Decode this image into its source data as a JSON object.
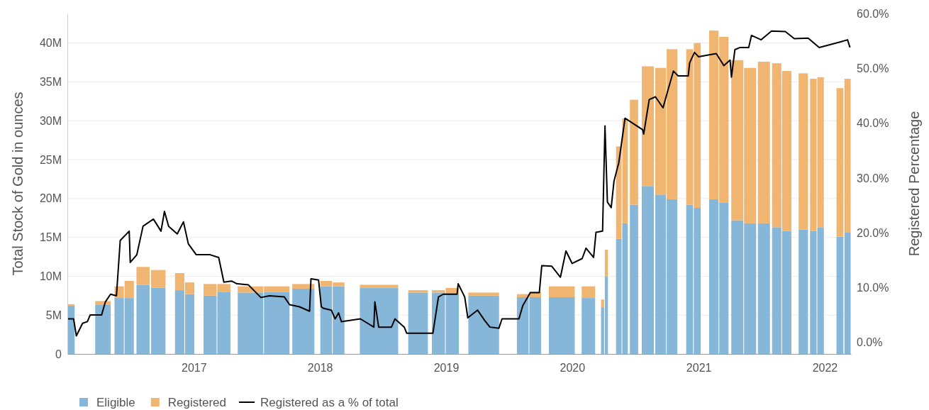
{
  "chart_data": {
    "type": "bar",
    "stacked": true,
    "xlabel": null,
    "ylabel": "Total Stock of Gold in ounces",
    "y2label": "Registered Percentage",
    "xlim": [
      "2016-01-01",
      "2022-03-18"
    ],
    "xticks": [
      {
        "value": "2017-01-01",
        "label": "2017"
      },
      {
        "value": "2018-01-01",
        "label": "2018"
      },
      {
        "value": "2019-01-01",
        "label": "2019"
      },
      {
        "value": "2020-01-01",
        "label": "2020"
      },
      {
        "value": "2021-01-01",
        "label": "2021"
      },
      {
        "value": "2022-01-01",
        "label": "2022"
      }
    ],
    "ylim": [
      0,
      43.8
    ],
    "yticks": [
      0,
      {
        "value": 5,
        "label": "5M"
      },
      {
        "value": 10,
        "label": "10M"
      },
      {
        "value": 15,
        "label": "15M"
      },
      {
        "value": 20,
        "label": "20M"
      },
      {
        "value": 25,
        "label": "25M"
      },
      {
        "value": 30,
        "label": "30M"
      },
      {
        "value": 35,
        "label": "35M"
      },
      {
        "value": 40,
        "label": "40M"
      }
    ],
    "y2lim": [
      -2.1,
      60
    ],
    "y2ticks": [
      {
        "value": 0,
        "label": "0.0%"
      },
      {
        "value": 10,
        "label": "10.0%"
      },
      {
        "value": 20,
        "label": "20.0%"
      },
      {
        "value": 30,
        "label": "30.0%"
      },
      {
        "value": 40,
        "label": "40.0%"
      },
      {
        "value": 50,
        "label": "50.0%"
      },
      {
        "value": 60,
        "label": "60.0%"
      }
    ],
    "grid": "y",
    "legend": "bottom left",
    "x": [
      "2016-01-12",
      "2016-04-13",
      "2016-05-30",
      "2016-06-28",
      "2016-08-07",
      "2016-09-20",
      "2016-11-21",
      "2016-12-20",
      "2017-02-17",
      "2017-03-29",
      "2017-06-14",
      "2017-08-29",
      "2017-11-14",
      "2018-01-19",
      "2018-02-24",
      "2018-06-21",
      "2018-10-12",
      "2018-12-10",
      "2019-01-19",
      "2019-04-20",
      "2019-08-11",
      "2019-09-16",
      "2019-12-02",
      "2020-02-17",
      "2020-03-29",
      "2020-04-09",
      "2020-05-15",
      "2020-06-02",
      "2020-06-28",
      "2020-08-07",
      "2020-09-13",
      "2020-10-16",
      "2020-12-06",
      "2020-12-28",
      "2021-02-14",
      "2021-03-15",
      "2021-04-23",
      "2021-05-30",
      "2021-07-09",
      "2021-08-15",
      "2021-09-13",
      "2021-10-31",
      "2021-11-29",
      "2021-12-20",
      "2022-02-14",
      "2022-03-08"
    ],
    "series": [
      {
        "name": "Eligible",
        "color": "#86b6d8",
        "values": [
          6.2,
          6.3,
          7.2,
          7.2,
          8.9,
          8.5,
          8.2,
          7.7,
          7.5,
          8.0,
          7.9,
          8.0,
          8.4,
          8.7,
          8.7,
          8.5,
          7.9,
          7.9,
          7.7,
          7.5,
          7.3,
          7.3,
          7.3,
          7.2,
          6.0,
          10.0,
          14.8,
          16.8,
          19.2,
          21.6,
          20.5,
          19.9,
          19.2,
          18.8,
          19.9,
          19.5,
          17.2,
          16.8,
          16.8,
          16.3,
          15.8,
          16.0,
          15.8,
          16.3,
          15.1,
          15.6
        ]
      },
      {
        "name": "Registered",
        "color": "#f1b572",
        "values": [
          0.2,
          0.5,
          1.5,
          2.2,
          2.3,
          2.3,
          2.2,
          1.5,
          1.5,
          1.0,
          0.8,
          0.7,
          0.6,
          0.7,
          0.5,
          0.4,
          0.3,
          0.3,
          0.8,
          0.4,
          0.4,
          0.7,
          1.4,
          1.5,
          1.0,
          3.4,
          11.9,
          13.5,
          13.5,
          15.4,
          16.3,
          19.3,
          20.0,
          21.2,
          21.7,
          21.3,
          20.6,
          20.0,
          20.8,
          21.1,
          20.6,
          20.1,
          19.6,
          19.3,
          19.1,
          19.8
        ]
      },
      {
        "name": "Registered as a % of total",
        "type": "line",
        "axis": "y2",
        "color": "#000000",
        "x": [
          "2016-01-01",
          "2016-01-19",
          "2016-01-27",
          "2016-02-14",
          "2016-02-28",
          "2016-03-07",
          "2016-04-09",
          "2016-04-20",
          "2016-05-05",
          "2016-05-22",
          "2016-06-02",
          "2016-06-28",
          "2016-07-01",
          "2016-07-20",
          "2016-08-07",
          "2016-09-06",
          "2016-09-28",
          "2016-10-08",
          "2016-10-20",
          "2016-11-14",
          "2016-12-02",
          "2016-12-16",
          "2017-01-08",
          "2017-02-17",
          "2017-03-14",
          "2017-03-29",
          "2017-04-20",
          "2017-05-06",
          "2017-06-08",
          "2017-07-14",
          "2017-08-08",
          "2017-09-20",
          "2017-10-05",
          "2017-11-03",
          "2017-12-02",
          "2017-12-06",
          "2017-12-28",
          "2018-01-05",
          "2018-01-12",
          "2018-02-03",
          "2018-02-14",
          "2018-02-24",
          "2018-03-04",
          "2018-04-28",
          "2018-06-06",
          "2018-06-09",
          "2018-06-20",
          "2018-07-27",
          "2018-08-06",
          "2018-09-02",
          "2018-09-09",
          "2018-11-24",
          "2018-12-10",
          "2018-12-24",
          "2019-02-02",
          "2019-02-05",
          "2019-02-24",
          "2019-03-05",
          "2019-04-02",
          "2019-04-23",
          "2019-05-08",
          "2019-06-03",
          "2019-06-12",
          "2019-07-31",
          "2019-08-11",
          "2019-09-02",
          "2019-09-28",
          "2019-10-05",
          "2019-11-03",
          "2019-11-28",
          "2019-12-14",
          "2020-01-01",
          "2020-01-30",
          "2020-02-10",
          "2020-03-03",
          "2020-03-10",
          "2020-03-29",
          "2020-04-05",
          "2020-04-12",
          "2020-04-23",
          "2020-05-01",
          "2020-05-15",
          "2020-06-02",
          "2020-07-23",
          "2020-07-26",
          "2020-08-11",
          "2020-08-29",
          "2020-09-20",
          "2020-10-05",
          "2020-10-20",
          "2020-11-03",
          "2020-12-02",
          "2020-12-06",
          "2020-12-20",
          "2021-01-01",
          "2021-02-21",
          "2021-03-15",
          "2021-04-02",
          "2021-04-06",
          "2021-04-16",
          "2021-05-01",
          "2021-05-26",
          "2021-06-03",
          "2021-07-01",
          "2021-07-31",
          "2021-09-09",
          "2021-10-05",
          "2021-11-14",
          "2021-12-16",
          "2022-02-14",
          "2022-03-08",
          "2022-03-15"
        ],
        "values": [
          4.3,
          4.3,
          1.2,
          3.5,
          3.8,
          5.0,
          5.0,
          7.4,
          8.8,
          8.5,
          18.6,
          20.3,
          14.6,
          16.0,
          21.2,
          22.5,
          20.3,
          23.9,
          21.2,
          19.8,
          22.0,
          18.0,
          16.0,
          16.0,
          15.5,
          11.0,
          11.2,
          10.7,
          10.5,
          8.2,
          8.5,
          8.3,
          6.9,
          6.5,
          5.7,
          11.6,
          11.4,
          6.5,
          6.2,
          5.9,
          4.3,
          5.4,
          3.8,
          4.3,
          2.8,
          7.4,
          2.8,
          2.8,
          4.3,
          2.8,
          1.7,
          1.7,
          8.3,
          8.8,
          8.8,
          10.7,
          8.3,
          4.5,
          5.9,
          4.0,
          2.8,
          2.6,
          4.3,
          4.3,
          6.7,
          9.1,
          9.1,
          14.0,
          13.9,
          11.9,
          16.7,
          14.4,
          15.3,
          17.2,
          15.5,
          20.1,
          20.3,
          39.5,
          25.6,
          24.6,
          29.4,
          32.8,
          40.9,
          38.8,
          38.0,
          44.3,
          44.8,
          42.8,
          46.2,
          49.5,
          48.6,
          48.6,
          51.0,
          52.9,
          52.1,
          52.7,
          50.5,
          51.5,
          48.4,
          53.4,
          53.8,
          53.8,
          56.0,
          55.2,
          56.8,
          56.7,
          55.4,
          55.5,
          53.8,
          54.8,
          55.2,
          53.8
        ]
      }
    ]
  }
}
